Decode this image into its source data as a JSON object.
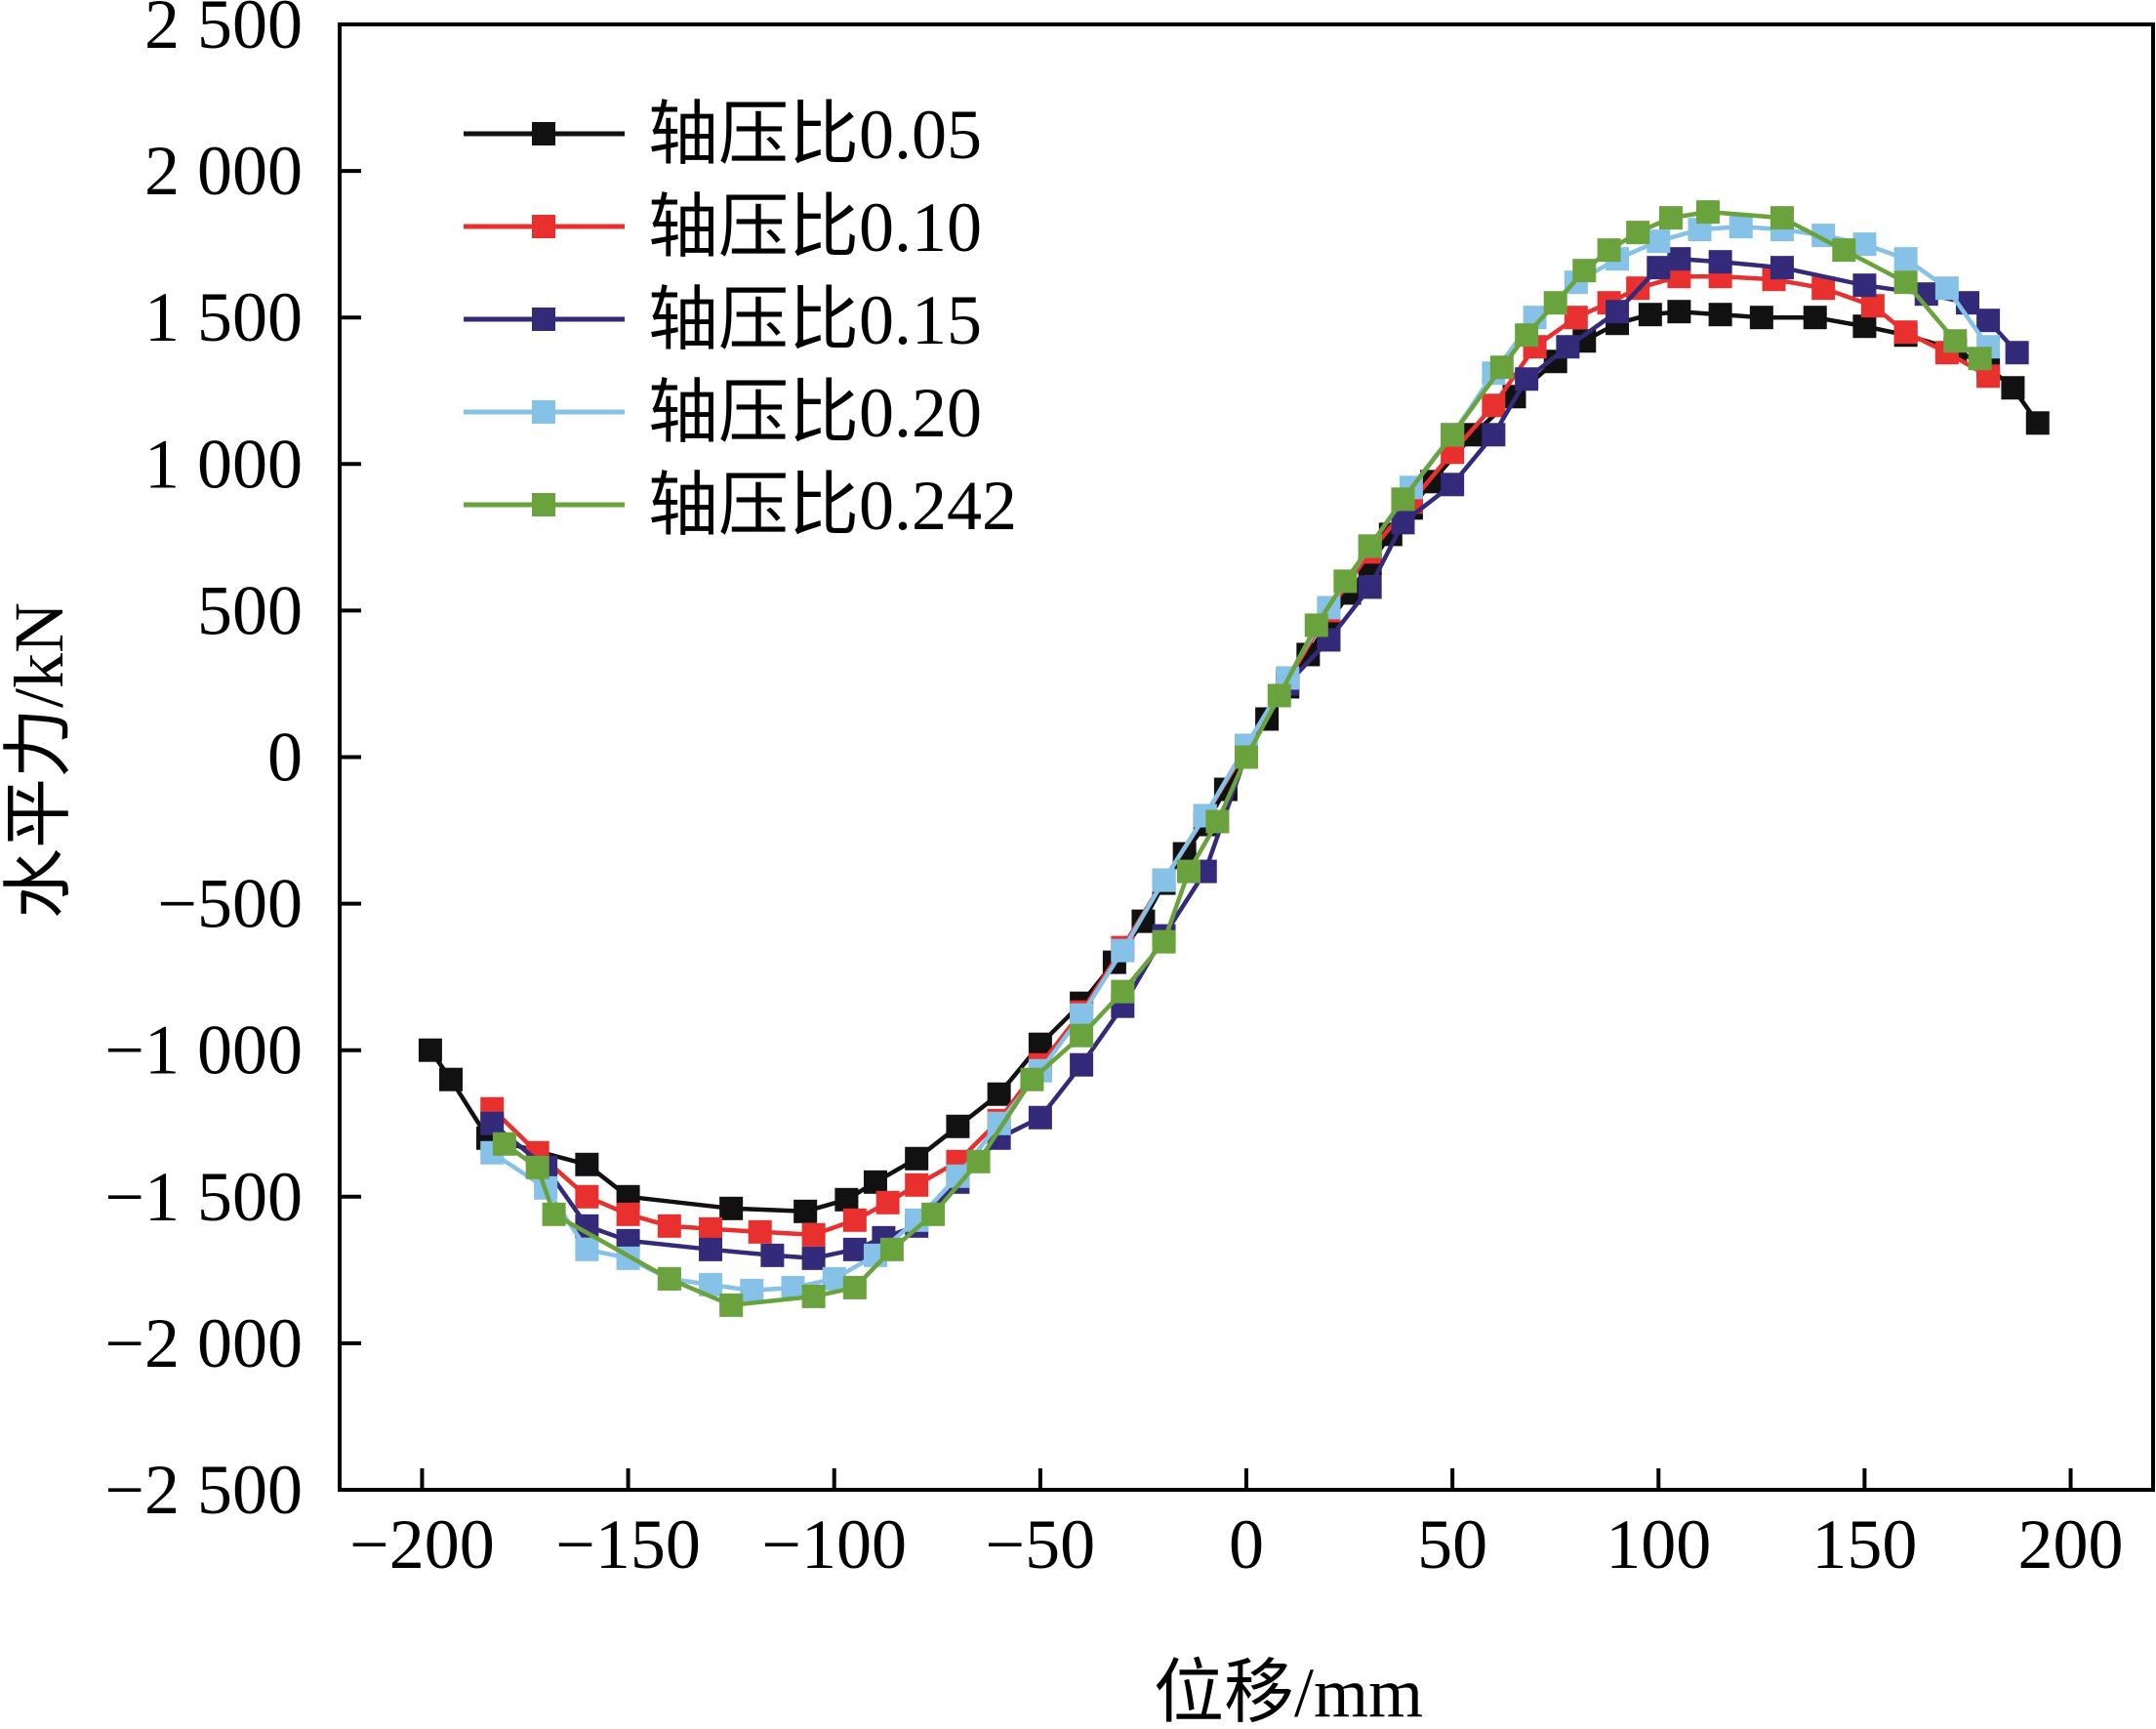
{
  "chart_data": {
    "type": "line",
    "title": "",
    "xlabel": "位移/mm",
    "ylabel": "水平力/kN",
    "xlim": [
      -220,
      220
    ],
    "ylim": [
      -2500,
      2500
    ],
    "x_ticks": [
      -200,
      -150,
      -100,
      -50,
      0,
      50,
      100,
      150,
      200
    ],
    "x_tick_labels": [
      "−200",
      "−150",
      "−100",
      "−50",
      "0",
      "50",
      "100",
      "150",
      "200"
    ],
    "y_ticks": [
      2500,
      2000,
      1500,
      1000,
      500,
      0,
      -500,
      -1000,
      -1500,
      -2000,
      -2500
    ],
    "y_tick_labels": [
      "2 500",
      "2 000",
      "1 500",
      "1 000",
      "500",
      "0",
      "−500",
      "−1 000",
      "−1 500",
      "−2 000",
      "−2 500"
    ],
    "grid": false,
    "legend_position": "top-left",
    "marker": "square",
    "series": [
      {
        "name": "轴压比0.05",
        "color": "#111111",
        "x": [
          -198,
          -193,
          -184,
          -160,
          -150,
          -125,
          -107,
          -97,
          -90,
          -80,
          -70,
          -60,
          -50,
          -40,
          -32,
          -25,
          -20,
          -15,
          -10,
          -5,
          0,
          5,
          10,
          15,
          20,
          25,
          30,
          35,
          40,
          45,
          55,
          65,
          75,
          82,
          90,
          98,
          105,
          115,
          125,
          138,
          150,
          160,
          172,
          180,
          186,
          192
        ],
        "y": [
          -1000,
          -1100,
          -1300,
          -1390,
          -1500,
          -1540,
          -1550,
          -1510,
          -1450,
          -1370,
          -1260,
          -1150,
          -980,
          -840,
          -700,
          -560,
          -430,
          -330,
          -230,
          -110,
          10,
          130,
          240,
          350,
          460,
          560,
          660,
          760,
          850,
          940,
          1100,
          1230,
          1350,
          1420,
          1480,
          1510,
          1520,
          1510,
          1500,
          1500,
          1470,
          1440,
          1390,
          1330,
          1260,
          1140
        ]
      },
      {
        "name": "轴压比0.10",
        "color": "#e8312e",
        "x": [
          -183,
          -172,
          -160,
          -150,
          -140,
          -130,
          -118,
          -105,
          -95,
          -87,
          -80,
          -70,
          -60,
          -50,
          -40,
          -30,
          -20,
          -10,
          0,
          10,
          20,
          30,
          40,
          50,
          60,
          70,
          80,
          88,
          95,
          105,
          115,
          128,
          140,
          152,
          160,
          170,
          180
        ],
        "y": [
          -1200,
          -1350,
          -1500,
          -1560,
          -1600,
          -1610,
          -1620,
          -1630,
          -1580,
          -1520,
          -1460,
          -1380,
          -1240,
          -1050,
          -870,
          -650,
          -420,
          -200,
          30,
          260,
          500,
          700,
          870,
          1040,
          1200,
          1400,
          1500,
          1550,
          1600,
          1640,
          1640,
          1630,
          1600,
          1540,
          1450,
          1380,
          1300
        ]
      },
      {
        "name": "轴压比0.15",
        "color": "#342a7a",
        "x": [
          -183,
          -170,
          -160,
          -150,
          -130,
          -115,
          -105,
          -95,
          -88,
          -80,
          -70,
          -60,
          -50,
          -40,
          -30,
          -20,
          -10,
          0,
          10,
          20,
          30,
          38,
          50,
          60,
          68,
          78,
          90,
          100,
          105,
          115,
          130,
          150,
          165,
          175,
          180,
          187
        ],
        "y": [
          -1250,
          -1400,
          -1600,
          -1650,
          -1680,
          -1700,
          -1710,
          -1680,
          -1640,
          -1600,
          -1450,
          -1300,
          -1230,
          -1050,
          -850,
          -610,
          -390,
          10,
          250,
          400,
          580,
          800,
          930,
          1100,
          1290,
          1400,
          1520,
          1670,
          1700,
          1690,
          1670,
          1610,
          1580,
          1550,
          1490,
          1380
        ]
      },
      {
        "name": "轴压比0.20",
        "color": "#86c1e8",
        "x": [
          -183,
          -170,
          -160,
          -150,
          -140,
          -130,
          -120,
          -110,
          -100,
          -90,
          -80,
          -70,
          -60,
          -50,
          -40,
          -30,
          -20,
          -10,
          0,
          10,
          20,
          30,
          40,
          50,
          60,
          70,
          80,
          90,
          100,
          110,
          120,
          130,
          140,
          150,
          160,
          170,
          180
        ],
        "y": [
          -1350,
          -1470,
          -1680,
          -1710,
          -1780,
          -1800,
          -1820,
          -1810,
          -1780,
          -1700,
          -1580,
          -1430,
          -1250,
          -1070,
          -880,
          -660,
          -420,
          -200,
          40,
          270,
          510,
          720,
          920,
          1100,
          1310,
          1500,
          1620,
          1700,
          1760,
          1800,
          1810,
          1800,
          1780,
          1750,
          1700,
          1600,
          1400
        ]
      },
      {
        "name": "轴压比0.242",
        "color": "#6aa23e",
        "x": [
          -180,
          -172,
          -168,
          -140,
          -125,
          -105,
          -95,
          -86,
          -76,
          -65,
          -52,
          -40,
          -30,
          -20,
          -14,
          -7,
          0,
          8,
          17,
          24,
          30,
          38,
          50,
          62,
          68,
          75,
          82,
          88,
          95,
          103,
          112,
          130,
          145,
          160,
          172,
          178
        ],
        "y": [
          -1320,
          -1400,
          -1560,
          -1780,
          -1870,
          -1840,
          -1810,
          -1680,
          -1560,
          -1380,
          -1100,
          -950,
          -800,
          -630,
          -390,
          -220,
          0,
          210,
          450,
          600,
          720,
          880,
          1100,
          1330,
          1440,
          1550,
          1660,
          1730,
          1790,
          1840,
          1860,
          1840,
          1730,
          1620,
          1420,
          1360
        ]
      }
    ]
  }
}
